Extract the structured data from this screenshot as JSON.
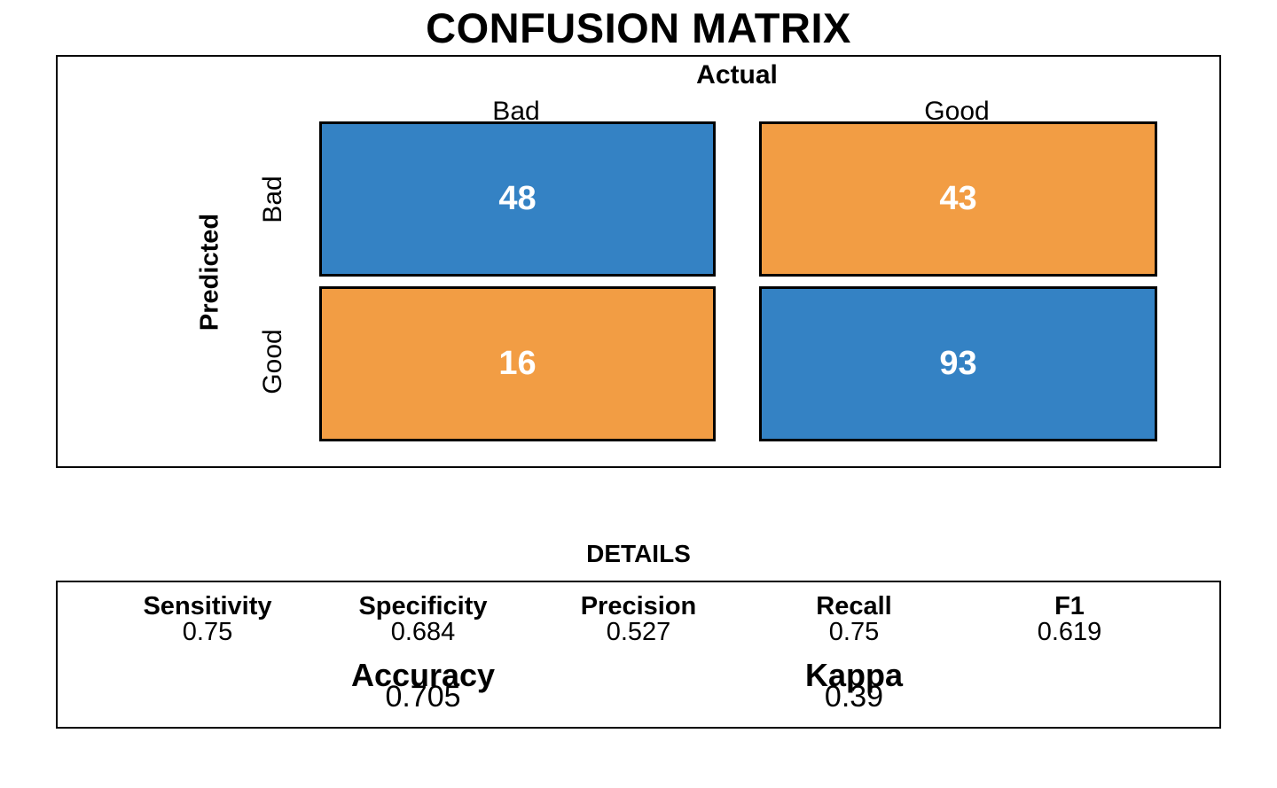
{
  "title": "CONFUSION MATRIX",
  "colors": {
    "true_class": "#3482c4",
    "false_class": "#f29d44",
    "cell_value_text": "#ffffff",
    "border": "#000000"
  },
  "matrix": {
    "top_axis_label": "Actual",
    "left_axis_label": "Predicted",
    "col_labels": [
      "Bad",
      "Good"
    ],
    "row_labels": [
      "Bad",
      "Good"
    ],
    "cells": [
      {
        "value": "48",
        "color": "#3482c4"
      },
      {
        "value": "43",
        "color": "#f29d44"
      },
      {
        "value": "16",
        "color": "#f29d44"
      },
      {
        "value": "93",
        "color": "#3482c4"
      }
    ]
  },
  "details": {
    "heading": "DETAILS",
    "metrics": [
      {
        "label": "Sensitivity",
        "value": "0.75"
      },
      {
        "label": "Specificity",
        "value": "0.684"
      },
      {
        "label": "Precision",
        "value": "0.527"
      },
      {
        "label": "Recall",
        "value": "0.75"
      },
      {
        "label": "F1",
        "value": "0.619"
      }
    ],
    "overall": [
      {
        "label": "Accuracy",
        "value": "0.705"
      },
      {
        "label": "Kappa",
        "value": "0.39"
      }
    ]
  },
  "chart_data": {
    "type": "heatmap",
    "title": "CONFUSION MATRIX",
    "x_axis_label": "Actual",
    "y_axis_label": "Predicted",
    "x_categories": [
      "Bad",
      "Good"
    ],
    "y_categories": [
      "Bad",
      "Good"
    ],
    "matrix": [
      [
        48,
        43
      ],
      [
        16,
        93
      ]
    ],
    "cell_colors": [
      [
        "#3482c4",
        "#f29d44"
      ],
      [
        "#f29d44",
        "#3482c4"
      ]
    ],
    "details_heading": "DETAILS",
    "metrics": {
      "Sensitivity": 0.75,
      "Specificity": 0.684,
      "Precision": 0.527,
      "Recall": 0.75,
      "F1": 0.619,
      "Accuracy": 0.705,
      "Kappa": 0.39
    },
    "legend": "none",
    "grid": false
  }
}
